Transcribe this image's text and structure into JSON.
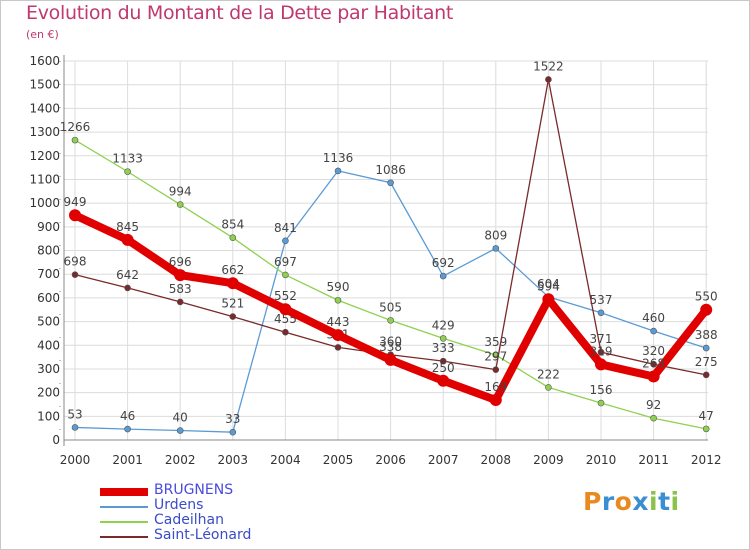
{
  "header": {
    "title": "Evolution du Montant de la Dette par Habitant",
    "subtitle": "(en €)"
  },
  "logo": {
    "text": "Proxiti",
    "colors": [
      "#e98a1f",
      "#3a8fd2",
      "#e98a1f",
      "#3a8fd2",
      "#8bc34a",
      "#3a8fd2",
      "#8bc34a"
    ]
  },
  "chart_data": {
    "type": "line",
    "title": "Evolution du Montant de la Dette par Habitant",
    "ylabel": "(en €)",
    "xlabel": "",
    "ylim": [
      0,
      1600
    ],
    "yticks": [
      0,
      100,
      200,
      300,
      400,
      500,
      600,
      700,
      800,
      900,
      1000,
      1100,
      1200,
      1300,
      1400,
      1500,
      1600
    ],
    "x": [
      "2000",
      "2001",
      "2002",
      "2003",
      "2004",
      "2005",
      "2006",
      "2007",
      "2008",
      "2009",
      "2010",
      "2011",
      "2012"
    ],
    "grid": true,
    "legend_position": "bottom-left",
    "series": [
      {
        "name": "BRUGNENS",
        "color": "#e00000",
        "thick": true,
        "values": [
          949,
          845,
          696,
          662,
          552,
          443,
          338,
          250,
          169,
          594,
          319,
          268,
          550
        ]
      },
      {
        "name": "Urdens",
        "color": "#5b9bd5",
        "thick": false,
        "values": [
          53,
          46,
          40,
          33,
          841,
          1136,
          1086,
          692,
          809,
          604,
          537,
          460,
          388
        ]
      },
      {
        "name": "Cadeilhan",
        "color": "#8ed14f",
        "thick": false,
        "values": [
          1266,
          1133,
          994,
          854,
          697,
          590,
          505,
          429,
          359,
          222,
          156,
          92,
          47
        ]
      },
      {
        "name": "Saint-Léonard",
        "color": "#7a2a2a",
        "thick": false,
        "values": [
          698,
          642,
          583,
          521,
          455,
          391,
          360,
          333,
          297,
          1522,
          371,
          320,
          275
        ]
      }
    ]
  }
}
